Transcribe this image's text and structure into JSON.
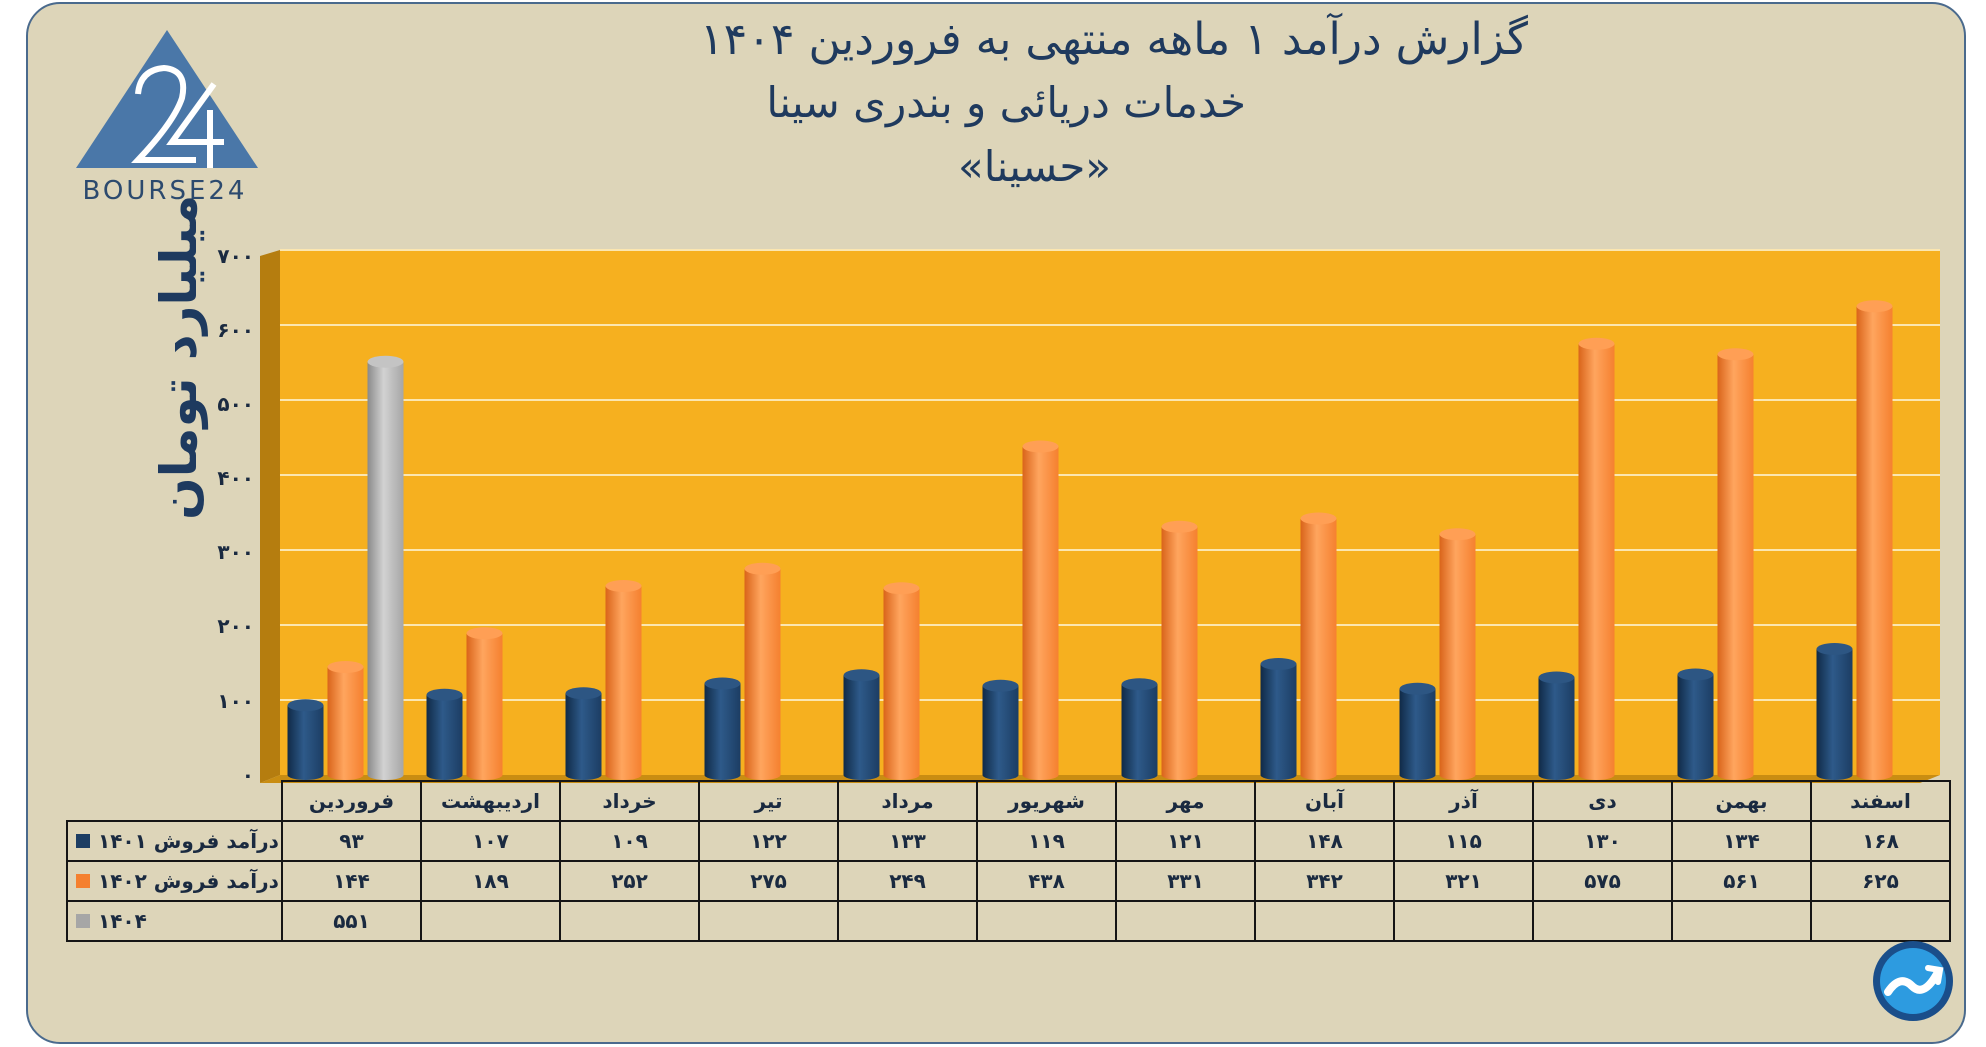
{
  "header": {
    "title_line1": "گزارش  درآمد ۱ ماهه منتهی به فروردین ۱۴۰۴",
    "title_line2": "خدمات دریائی و بندری سینا",
    "title_line3": "«حسینا»"
  },
  "logo": {
    "text": "BOURSE24",
    "icon": "bourse24-triangle-logo"
  },
  "corner_icon": "trend-chart-icon",
  "colors": {
    "s1401": "#1c3d63",
    "s1402": "#f5802f",
    "s1404": "#a6a6a6",
    "plot_bg": "#f6b01f",
    "card_bg": "#ddd5b9"
  },
  "chart_data": {
    "type": "bar",
    "title": "گزارش  درآمد ۱ ماهه منتهی به فروردین ۱۴۰۴",
    "ylabel": "میلیارد تومان",
    "ylim": [
      0,
      700
    ],
    "yticks": [
      "۰",
      "۱۰۰",
      "۲۰۰",
      "۳۰۰",
      "۴۰۰",
      "۵۰۰",
      "۶۰۰",
      "۷۰۰"
    ],
    "grid": true,
    "categories": [
      "فروردین",
      "اردیبهشت",
      "خرداد",
      "تیر",
      "مرداد",
      "شهریور",
      "مهر",
      "آبان",
      "آذر",
      "دی",
      "بهمن",
      "اسفند"
    ],
    "series": [
      {
        "name": "درآمد فروش ۱۴۰۱",
        "values": [
          93,
          107,
          109,
          122,
          133,
          119,
          121,
          148,
          115,
          130,
          134,
          168
        ],
        "labels": [
          "۹۳",
          "۱۰۷",
          "۱۰۹",
          "۱۲۲",
          "۱۳۳",
          "۱۱۹",
          "۱۲۱",
          "۱۴۸",
          "۱۱۵",
          "۱۳۰",
          "۱۳۴",
          "۱۶۸"
        ]
      },
      {
        "name": "درآمد فروش ۱۴۰۲",
        "values": [
          144,
          189,
          252,
          275,
          249,
          438,
          331,
          342,
          321,
          575,
          561,
          625
        ],
        "labels": [
          "۱۴۴",
          "۱۸۹",
          "۲۵۲",
          "۲۷۵",
          "۲۴۹",
          "۴۳۸",
          "۳۳۱",
          "۳۴۲",
          "۳۲۱",
          "۵۷۵",
          "۵۶۱",
          "۶۲۵"
        ]
      },
      {
        "name": "۱۴۰۴",
        "values": [
          551,
          null,
          null,
          null,
          null,
          null,
          null,
          null,
          null,
          null,
          null,
          null
        ],
        "labels": [
          "۵۵۱",
          "",
          "",
          "",
          "",
          "",
          "",
          "",
          "",
          "",
          "",
          ""
        ]
      }
    ]
  }
}
